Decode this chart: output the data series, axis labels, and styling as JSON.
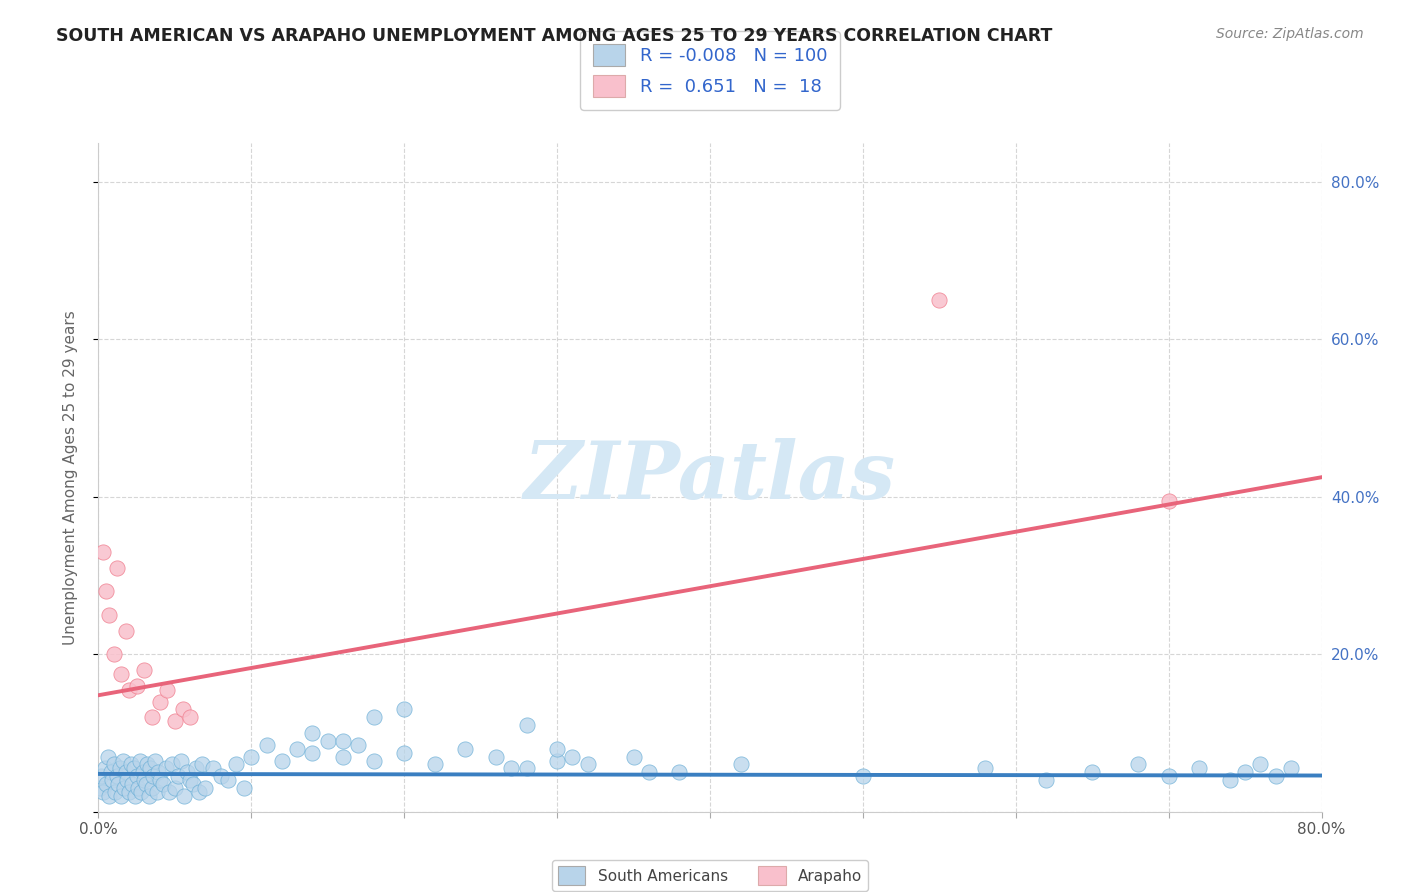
{
  "title": "SOUTH AMERICAN VS ARAPAHO UNEMPLOYMENT AMONG AGES 25 TO 29 YEARS CORRELATION CHART",
  "source": "Source: ZipAtlas.com",
  "ylabel": "Unemployment Among Ages 25 to 29 years",
  "xlim": [
    0.0,
    0.8
  ],
  "ylim": [
    0.0,
    0.85
  ],
  "xticks": [
    0.0,
    0.1,
    0.2,
    0.3,
    0.4,
    0.5,
    0.6,
    0.7,
    0.8
  ],
  "xticklabels": [
    "0.0%",
    "",
    "",
    "",
    "",
    "",
    "",
    "",
    "80.0%"
  ],
  "yticks": [
    0.0,
    0.2,
    0.4,
    0.6,
    0.8
  ],
  "yticklabels": [
    "",
    "20.0%",
    "40.0%",
    "60.0%",
    "80.0%"
  ],
  "blue_R": -0.008,
  "blue_N": 100,
  "pink_R": 0.651,
  "pink_N": 18,
  "legend_label_blue": "South Americans",
  "legend_label_pink": "Arapaho",
  "blue_color": "#b8d4ea",
  "blue_edge_color": "#6aaed6",
  "blue_line_color": "#3a7fc1",
  "pink_color": "#f9c0cc",
  "pink_edge_color": "#f08090",
  "pink_line_color": "#e8647a",
  "background_color": "#ffffff",
  "watermark_color": "#d5e8f5",
  "blue_line_y0": 0.048,
  "blue_line_y1": 0.046,
  "pink_line_y0": 0.148,
  "pink_line_y1": 0.425,
  "blue_x": [
    0.001,
    0.002,
    0.003,
    0.004,
    0.005,
    0.006,
    0.007,
    0.008,
    0.009,
    0.01,
    0.011,
    0.012,
    0.013,
    0.014,
    0.015,
    0.016,
    0.017,
    0.018,
    0.019,
    0.02,
    0.021,
    0.022,
    0.023,
    0.024,
    0.025,
    0.026,
    0.027,
    0.028,
    0.029,
    0.03,
    0.031,
    0.032,
    0.033,
    0.034,
    0.035,
    0.036,
    0.037,
    0.038,
    0.039,
    0.04,
    0.042,
    0.044,
    0.046,
    0.048,
    0.05,
    0.052,
    0.054,
    0.056,
    0.058,
    0.06,
    0.062,
    0.064,
    0.066,
    0.068,
    0.07,
    0.075,
    0.08,
    0.085,
    0.09,
    0.095,
    0.1,
    0.11,
    0.12,
    0.13,
    0.14,
    0.15,
    0.16,
    0.17,
    0.18,
    0.2,
    0.22,
    0.24,
    0.26,
    0.28,
    0.3,
    0.32,
    0.35,
    0.38,
    0.28,
    0.3,
    0.14,
    0.16,
    0.18,
    0.2,
    0.27,
    0.31,
    0.36,
    0.42,
    0.5,
    0.58,
    0.62,
    0.65,
    0.68,
    0.7,
    0.72,
    0.74,
    0.75,
    0.76,
    0.77,
    0.78
  ],
  "blue_y": [
    0.03,
    0.045,
    0.025,
    0.055,
    0.035,
    0.07,
    0.02,
    0.05,
    0.04,
    0.06,
    0.025,
    0.045,
    0.035,
    0.055,
    0.02,
    0.065,
    0.03,
    0.05,
    0.04,
    0.025,
    0.06,
    0.035,
    0.055,
    0.02,
    0.045,
    0.03,
    0.065,
    0.025,
    0.05,
    0.04,
    0.035,
    0.06,
    0.02,
    0.055,
    0.03,
    0.045,
    0.065,
    0.025,
    0.05,
    0.04,
    0.035,
    0.055,
    0.025,
    0.06,
    0.03,
    0.045,
    0.065,
    0.02,
    0.05,
    0.04,
    0.035,
    0.055,
    0.025,
    0.06,
    0.03,
    0.055,
    0.045,
    0.04,
    0.06,
    0.03,
    0.07,
    0.085,
    0.065,
    0.08,
    0.075,
    0.09,
    0.07,
    0.085,
    0.065,
    0.075,
    0.06,
    0.08,
    0.07,
    0.055,
    0.065,
    0.06,
    0.07,
    0.05,
    0.11,
    0.08,
    0.1,
    0.09,
    0.12,
    0.13,
    0.055,
    0.07,
    0.05,
    0.06,
    0.045,
    0.055,
    0.04,
    0.05,
    0.06,
    0.045,
    0.055,
    0.04,
    0.05,
    0.06,
    0.045,
    0.055
  ],
  "pink_x": [
    0.003,
    0.005,
    0.007,
    0.01,
    0.012,
    0.015,
    0.018,
    0.02,
    0.025,
    0.03,
    0.035,
    0.04,
    0.045,
    0.05,
    0.055,
    0.06,
    0.55,
    0.7
  ],
  "pink_y": [
    0.33,
    0.28,
    0.25,
    0.2,
    0.31,
    0.175,
    0.23,
    0.155,
    0.16,
    0.18,
    0.12,
    0.14,
    0.155,
    0.115,
    0.13,
    0.12,
    0.65,
    0.395
  ]
}
